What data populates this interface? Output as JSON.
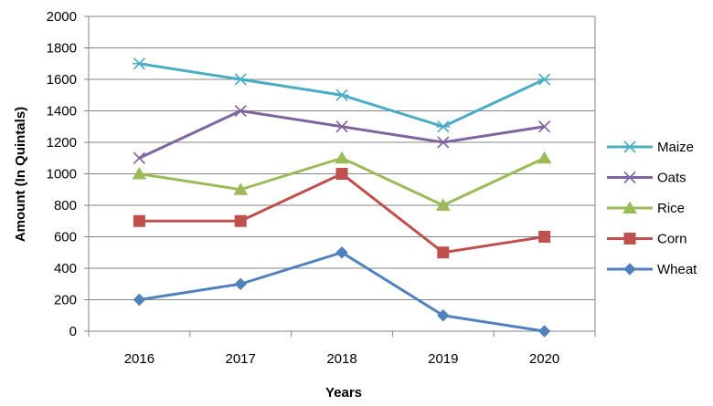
{
  "chart_data": {
    "type": "line",
    "categories": [
      "2016",
      "2017",
      "2018",
      "2019",
      "2020"
    ],
    "xlabel": "Years",
    "ylabel": "Amount (In Quintals)",
    "ylim": [
      0,
      2000
    ],
    "yticks": [
      0,
      200,
      400,
      600,
      800,
      1000,
      1200,
      1400,
      1600,
      1800,
      2000
    ],
    "grid": "horizontal",
    "legend": "right",
    "series": [
      {
        "name": "Maize",
        "color": "#4BACC6",
        "marker": "asterisk",
        "values": [
          1700,
          1600,
          1500,
          1300,
          1600
        ]
      },
      {
        "name": "Oats",
        "color": "#8064A2",
        "marker": "x",
        "values": [
          1100,
          1400,
          1300,
          1200,
          1300
        ]
      },
      {
        "name": "Rice",
        "color": "#9BBB59",
        "marker": "triangle",
        "values": [
          1000,
          900,
          1100,
          800,
          1100
        ]
      },
      {
        "name": "Corn",
        "color": "#C0504D",
        "marker": "square",
        "values": [
          700,
          700,
          1000,
          500,
          600
        ]
      },
      {
        "name": "Wheat",
        "color": "#4F81BD",
        "marker": "diamond",
        "values": [
          200,
          300,
          500,
          100,
          0
        ]
      }
    ]
  }
}
